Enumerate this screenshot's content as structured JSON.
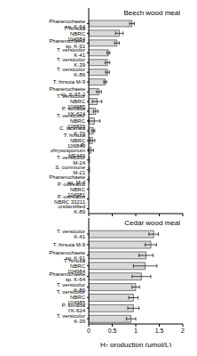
{
  "chart_data": [
    {
      "type": "bar",
      "orientation": "horizontal",
      "title": "Beech wood meal",
      "color": "#d9d9d9",
      "tick_labels": "y",
      "categories": [
        "Phanerochaete sp. K-64",
        "T. hirsuta NBRC 104984",
        "Phanerochaete sp. K-91",
        "T. versicolor K-41",
        "T. versicolor K-39",
        "T. versicolor K-86",
        "T. hirsuta M-9",
        "Phanerochaete sp. K-97-2",
        "T. versicolor NBRC 104985",
        "P. sordida YK-624",
        "T. versicolor NBRC 106839",
        "C. lacerata K-70",
        "T. hirsuta NBRC 106840",
        "P. chrysosporium ME446",
        "T. versicolor M-24",
        "S. commune M-21",
        "Phanerochaete sp. M-4",
        "P. ostreatus NBRC 104981",
        "P. ostreatus NBRC 33211",
        "unidentified K-89"
      ],
      "values": [
        0.92,
        0.65,
        0.6,
        0.42,
        0.4,
        0.4,
        0.35,
        0.22,
        0.18,
        0.15,
        0.12,
        0.1,
        0.08,
        0.05,
        0.02,
        0.02,
        0.01,
        0,
        0,
        0
      ],
      "errors": [
        0.05,
        0.08,
        0.05,
        0.03,
        0.05,
        0.04,
        0.03,
        0.05,
        0.1,
        0.05,
        0.12,
        0.03,
        0.05,
        0.05,
        0,
        0,
        0,
        0,
        0,
        0
      ],
      "xlim": [
        0,
        2
      ],
      "xticks": [
        0,
        0.5,
        1,
        1.5,
        2
      ]
    },
    {
      "type": "bar",
      "orientation": "horizontal",
      "title": "Cedar wood meal",
      "color": "#d9d9d9",
      "categories": [
        "T. versicolor K-41",
        "T. hirsuta M-9",
        "Phanerochaete sp. K-91",
        "T. hirsuta NBRC 104984",
        "Phanerochaete sp. K-64",
        "T. versicolor K-86",
        "T. versicolor NBRC 104985",
        "P. sordida YK-624",
        "T. versicolor K-39"
      ],
      "values": [
        1.38,
        1.32,
        1.22,
        1.2,
        1.12,
        1.0,
        0.95,
        0.95,
        0.9
      ],
      "errors": [
        0.1,
        0.12,
        0.15,
        0.25,
        0.2,
        0.08,
        0.1,
        0.12,
        0.1
      ],
      "xlabel": "H₂ production (μmol/L)",
      "xlim": [
        0,
        2
      ],
      "xticks": [
        0,
        0.5,
        1,
        1.5,
        2
      ]
    }
  ]
}
